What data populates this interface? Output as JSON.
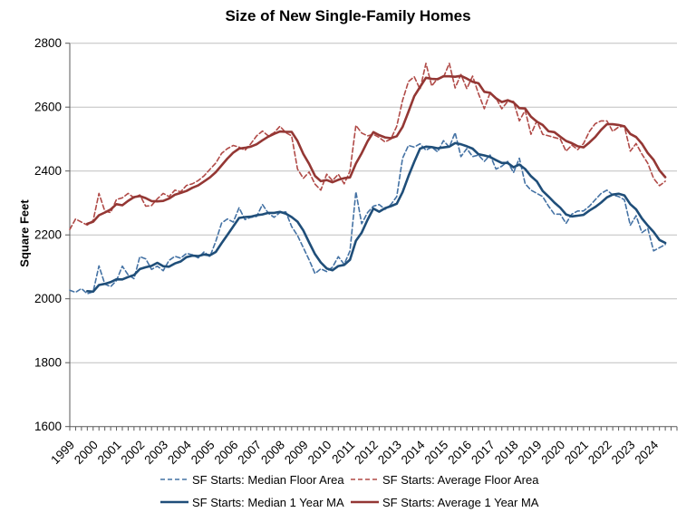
{
  "title": "Size of New Single-Family Homes",
  "y_axis": {
    "label": "Square Feet",
    "min": 1600,
    "max": 2800,
    "tick_step": 200,
    "ticks": [
      1600,
      1800,
      2000,
      2200,
      2400,
      2600,
      2800
    ]
  },
  "x_axis": {
    "years": [
      1999,
      2000,
      2001,
      2002,
      2003,
      2004,
      2005,
      2006,
      2007,
      2008,
      2009,
      2010,
      2011,
      2012,
      2013,
      2014,
      2015,
      2016,
      2017,
      2018,
      2019,
      2020,
      2021,
      2022,
      2023,
      2024
    ],
    "minor_ticks": "quarterly"
  },
  "legend": [
    {
      "label": "SF Starts: Median Floor Area",
      "color": "#4472A4",
      "dash": "5,3",
      "width": 1.6
    },
    {
      "label": "SF Starts: Average Floor Area",
      "color": "#B04A47",
      "dash": "5,3",
      "width": 1.6
    },
    {
      "label": "SF Starts: Median 1 Year MA",
      "color": "#1F4E79",
      "dash": "",
      "width": 2.6
    },
    {
      "label": "SF Starts: Average 1 Year MA",
      "color": "#943734",
      "dash": "",
      "width": 2.6
    }
  ],
  "chart_data": {
    "type": "line",
    "title": "Size of New Single-Family Homes",
    "xlabel": "",
    "ylabel": "Square Feet",
    "ylim": [
      1600,
      2800
    ],
    "x_start_year": 1999,
    "points_per_year": 4,
    "x_end": "2024 Q3",
    "grid": "horizontal",
    "legend_position": "bottom",
    "series": [
      {
        "name": "SF Starts: Median Floor Area",
        "style": "dashed",
        "color": "#4472A4",
        "width": 1.6,
        "values": [
          2027,
          2020,
          2032,
          2016,
          2022,
          2103,
          2046,
          2038,
          2057,
          2102,
          2075,
          2063,
          2132,
          2125,
          2092,
          2102,
          2088,
          2120,
          2133,
          2127,
          2142,
          2138,
          2128,
          2147,
          2132,
          2180,
          2237,
          2250,
          2240,
          2285,
          2248,
          2255,
          2258,
          2295,
          2268,
          2255,
          2270,
          2272,
          2226,
          2198,
          2160,
          2122,
          2079,
          2094,
          2085,
          2099,
          2132,
          2108,
          2150,
          2335,
          2235,
          2270,
          2290,
          2295,
          2280,
          2295,
          2320,
          2440,
          2480,
          2475,
          2485,
          2465,
          2475,
          2460,
          2495,
          2475,
          2520,
          2445,
          2470,
          2445,
          2450,
          2430,
          2450,
          2406,
          2415,
          2430,
          2395,
          2440,
          2360,
          2340,
          2330,
          2320,
          2290,
          2265,
          2265,
          2236,
          2265,
          2275,
          2275,
          2290,
          2310,
          2330,
          2340,
          2325,
          2320,
          2310,
          2230,
          2260,
          2207,
          2220,
          2150,
          2160,
          2170
        ]
      },
      {
        "name": "SF Starts: Average Floor Area",
        "style": "dashed",
        "color": "#B04A47",
        "width": 1.6,
        "values": [
          2217,
          2250,
          2240,
          2231,
          2245,
          2330,
          2274,
          2270,
          2311,
          2316,
          2330,
          2316,
          2325,
          2290,
          2292,
          2313,
          2330,
          2320,
          2340,
          2335,
          2355,
          2360,
          2370,
          2385,
          2405,
          2425,
          2455,
          2470,
          2480,
          2475,
          2465,
          2485,
          2510,
          2525,
          2510,
          2520,
          2540,
          2520,
          2510,
          2406,
          2377,
          2397,
          2359,
          2340,
          2390,
          2370,
          2390,
          2360,
          2400,
          2543,
          2519,
          2510,
          2515,
          2505,
          2491,
          2500,
          2540,
          2621,
          2680,
          2695,
          2656,
          2737,
          2666,
          2690,
          2693,
          2737,
          2660,
          2702,
          2658,
          2697,
          2642,
          2595,
          2645,
          2628,
          2595,
          2618,
          2618,
          2557,
          2590,
          2515,
          2557,
          2515,
          2510,
          2505,
          2500,
          2462,
          2481,
          2467,
          2486,
          2524,
          2548,
          2557,
          2557,
          2524,
          2538,
          2540,
          2462,
          2486,
          2453,
          2424,
          2377,
          2354,
          2368
        ]
      },
      {
        "name": "SF Starts: Median 1 Year MA",
        "style": "solid",
        "color": "#1F4E79",
        "width": 2.6,
        "derived": "trailing 4-quarter moving average of 'SF Starts: Median Floor Area'"
      },
      {
        "name": "SF Starts: Average 1 Year MA",
        "style": "solid",
        "color": "#943734",
        "width": 2.6,
        "derived": "trailing 4-quarter moving average of 'SF Starts: Average Floor Area'"
      }
    ]
  },
  "style_colors": {
    "gridline": "#BFBFBF",
    "axis": "#595959",
    "background": "#FFFFFF",
    "text": "#000000"
  }
}
